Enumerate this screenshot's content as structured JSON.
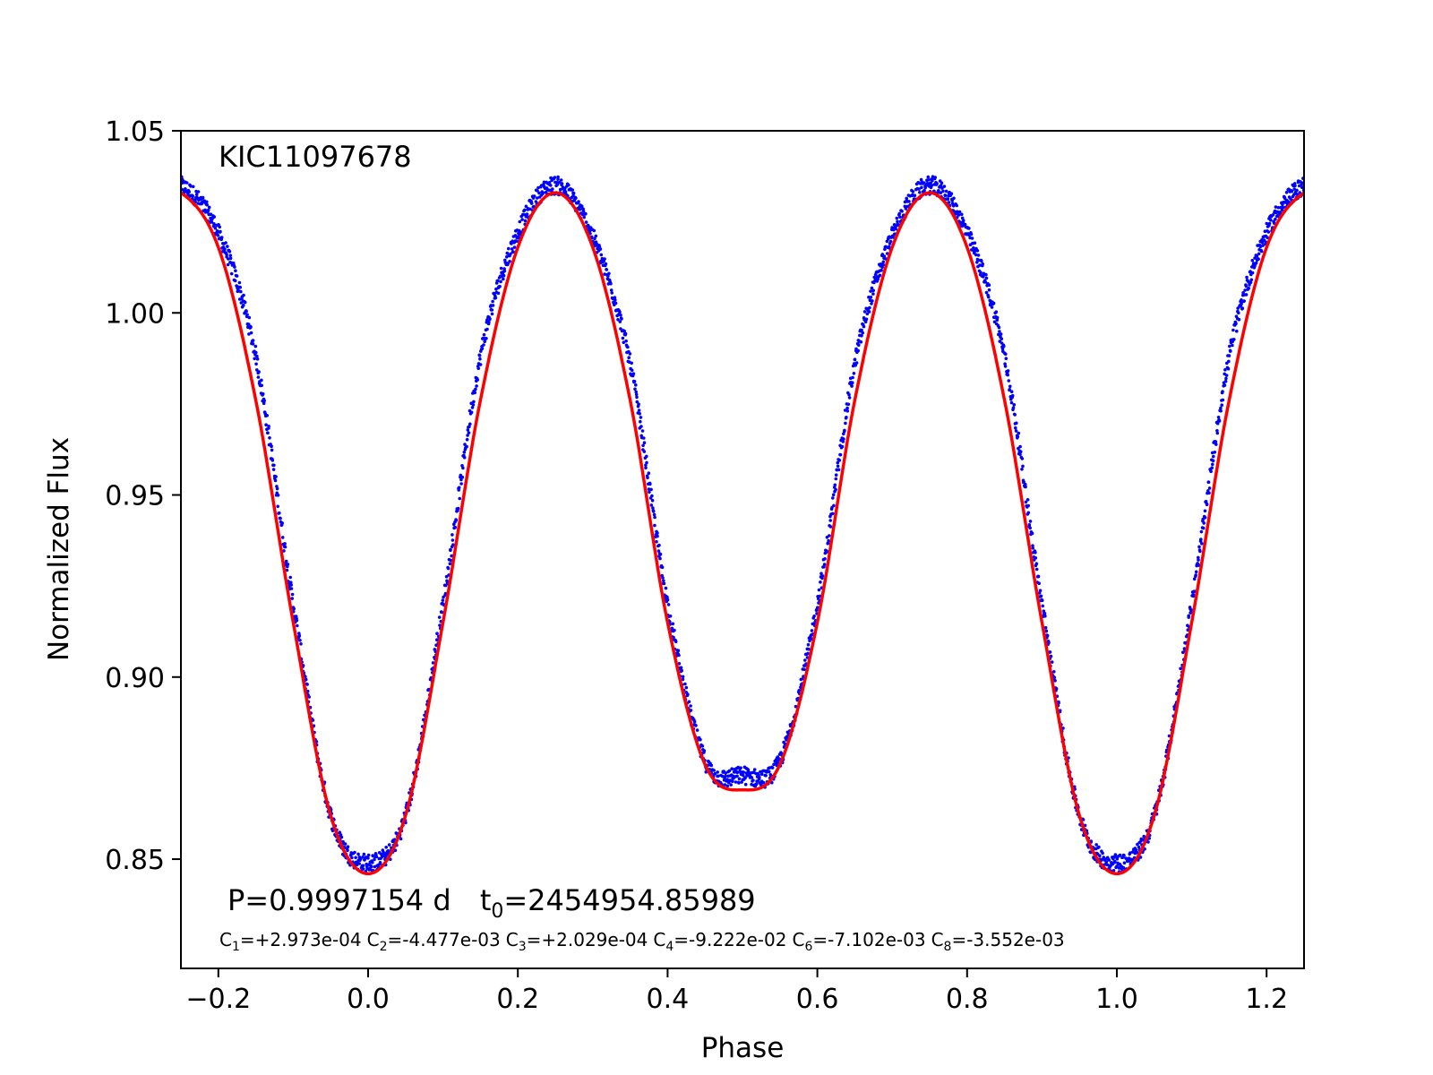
{
  "chart_data": {
    "type": "scatter",
    "xlabel": "Phase",
    "ylabel": "Normalized Flux",
    "xlim": [
      -0.25,
      1.25
    ],
    "ylim": [
      0.82,
      1.05
    ],
    "x_ticks": [
      -0.2,
      0.0,
      0.2,
      0.4,
      0.6,
      0.8,
      1.0,
      1.2
    ],
    "x_tick_labels": [
      "−0.2",
      "0.0",
      "0.2",
      "0.4",
      "0.6",
      "0.8",
      "1.0",
      "1.2"
    ],
    "y_ticks": [
      0.85,
      0.9,
      0.95,
      1.0,
      1.05
    ],
    "y_tick_labels": [
      "0.85",
      "0.90",
      "0.95",
      "1.00",
      "1.05"
    ],
    "grid": false,
    "legend": "none",
    "annotations": {
      "object": "KIC11097678",
      "period_text": "P=0.9997154 d",
      "t0_main": "t",
      "t0_sub": "0",
      "t0_value": "=2454954.85989",
      "coefficients": [
        {
          "base": "C",
          "sub": "1",
          "value": "=+2.973e-04"
        },
        {
          "base": "C",
          "sub": "2",
          "value": "=-4.477e-03"
        },
        {
          "base": "C",
          "sub": "3",
          "value": "=+2.029e-04"
        },
        {
          "base": "C",
          "sub": "4",
          "value": "=-9.222e-02"
        },
        {
          "base": "C",
          "sub": "6",
          "value": "=-7.102e-03"
        },
        {
          "base": "C",
          "sub": "8",
          "value": "=-3.552e-03"
        }
      ]
    },
    "series": [
      {
        "kind": "observed-points",
        "color": "#0000ff",
        "x": [
          -0.25,
          -0.2,
          -0.15,
          -0.1,
          -0.05,
          0.0,
          0.05,
          0.1,
          0.15,
          0.2,
          0.25,
          0.3,
          0.35,
          0.4,
          0.45,
          0.5,
          0.55,
          0.6,
          0.65,
          0.7,
          0.75,
          0.8,
          0.85,
          0.9,
          0.95,
          1.0,
          1.05,
          1.1,
          1.15,
          1.2,
          1.25
        ],
        "y": [
          1.035,
          1.022,
          0.988,
          0.92,
          0.862,
          0.849,
          0.862,
          0.92,
          0.988,
          1.022,
          1.035,
          1.021,
          0.986,
          0.92,
          0.877,
          0.873,
          0.877,
          0.92,
          0.986,
          1.021,
          1.035,
          1.022,
          0.988,
          0.92,
          0.862,
          0.849,
          0.862,
          0.92,
          0.988,
          1.022,
          1.035
        ],
        "band_width": 0.0025
      },
      {
        "kind": "model-fit",
        "color": "#ff0000",
        "x": [
          -0.25,
          -0.2,
          -0.15,
          -0.1,
          -0.05,
          0.0,
          0.05,
          0.1,
          0.15,
          0.2,
          0.25,
          0.3,
          0.35,
          0.4,
          0.45,
          0.5,
          0.55,
          0.6,
          0.65,
          0.7,
          0.75,
          0.8,
          0.85,
          0.9,
          0.95,
          1.0,
          1.05,
          1.1,
          1.15,
          1.2,
          1.25
        ],
        "y": [
          1.033,
          1.018,
          0.976,
          0.915,
          0.862,
          0.846,
          0.862,
          0.915,
          0.976,
          1.018,
          1.033,
          1.018,
          0.976,
          0.915,
          0.876,
          0.869,
          0.876,
          0.915,
          0.976,
          1.018,
          1.033,
          1.018,
          0.976,
          0.915,
          0.862,
          0.846,
          0.862,
          0.915,
          0.976,
          1.018,
          1.033
        ]
      }
    ]
  }
}
